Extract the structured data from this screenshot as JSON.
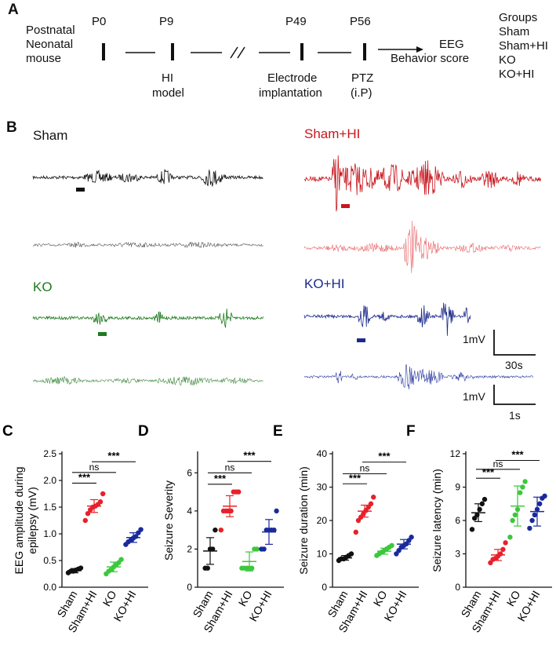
{
  "panel_a": {
    "letter": "A",
    "subject_lines": [
      "Postnatal",
      "Neonatal",
      "mouse"
    ],
    "stages": [
      {
        "day": "P0",
        "event": []
      },
      {
        "day": "P9",
        "event": [
          "HI",
          "model"
        ]
      },
      {
        "day": "P49",
        "event": [
          "Electrode",
          "implantation"
        ]
      },
      {
        "day": "P56",
        "event": [
          "PTZ",
          "(i.P)"
        ]
      }
    ],
    "outcome_lines": [
      "EEG",
      "Behavior score"
    ],
    "groups_title": "Groups",
    "groups": [
      "Sham",
      "Sham+HI",
      "KO",
      "KO+HI"
    ]
  },
  "panel_b": {
    "letter": "B",
    "traces": [
      {
        "label": "Sham",
        "color": "#111111"
      },
      {
        "label": "Sham+HI",
        "color": "#c8161d"
      },
      {
        "label": "KO",
        "color": "#1e7a1e"
      },
      {
        "label": "KO+HI",
        "color": "#1c2a8c"
      }
    ],
    "scalebar_long": {
      "amplitude": "1mV",
      "time": "30s"
    },
    "scalebar_short": {
      "amplitude": "1mV",
      "time": "1s"
    }
  },
  "colors": {
    "Sham": "#111111",
    "Sham+HI": "#e8202a",
    "KO": "#3cc83c",
    "KO+HI": "#1a2a9c"
  },
  "chart_data": [
    {
      "letter": "C",
      "type": "scatter",
      "ylabel_lines": [
        "EEG amplitude during",
        "epilepsy (mV)"
      ],
      "categories": [
        "Sham",
        "Sham+HI",
        "KO",
        "KO+HI"
      ],
      "ylim": [
        0,
        2.5
      ],
      "yticks": [
        0.0,
        0.5,
        1.0,
        1.5,
        2.0,
        2.5
      ],
      "ytick_labels": [
        "0.0",
        "0.5",
        "1.0",
        "1.5",
        "2.0",
        "2.5"
      ],
      "points": [
        [
          0.27,
          0.3,
          0.3,
          0.32,
          0.34,
          0.36
        ],
        [
          1.25,
          1.38,
          1.45,
          1.5,
          1.52,
          1.55,
          1.6,
          1.75
        ],
        [
          0.25,
          0.3,
          0.33,
          0.38,
          0.42,
          0.46,
          0.52
        ],
        [
          0.8,
          0.85,
          0.88,
          0.92,
          0.95,
          1.02,
          1.08
        ]
      ],
      "mean": [
        0.31,
        1.52,
        0.38,
        0.93
      ],
      "sd": [
        0.04,
        0.12,
        0.09,
        0.09
      ],
      "comparisons": [
        {
          "from": 0,
          "to": 1,
          "label": "***",
          "y": 1.95
        },
        {
          "from": 0,
          "to": 2,
          "label": "ns",
          "y": 2.15
        },
        {
          "from": 1,
          "to": 3,
          "label": "***",
          "y": 2.35
        }
      ]
    },
    {
      "letter": "D",
      "type": "scatter",
      "ylabel_lines": [
        "Seizure  Severity"
      ],
      "categories": [
        "Sham",
        "Sham+HI",
        "KO",
        "KO+HI"
      ],
      "ylim": [
        0,
        7
      ],
      "yticks": [
        0,
        2,
        4,
        6
      ],
      "ytick_labels": [
        "0",
        "2",
        "4",
        "6"
      ],
      "points": [
        [
          1,
          1,
          2,
          2,
          3
        ],
        [
          3,
          4,
          4,
          4,
          4,
          5,
          5,
          5
        ],
        [
          1,
          1,
          1,
          1,
          1,
          2,
          2
        ],
        [
          2,
          2,
          3,
          3,
          3,
          3,
          4
        ]
      ],
      "mean": [
        1.9,
        4.25,
        1.35,
        2.9
      ],
      "sd": [
        0.7,
        0.55,
        0.5,
        0.65
      ],
      "comparisons": [
        {
          "from": 0,
          "to": 1,
          "label": "***",
          "y": 5.4
        },
        {
          "from": 0,
          "to": 2,
          "label": "ns",
          "y": 6.0
        },
        {
          "from": 1,
          "to": 3,
          "label": "***",
          "y": 6.6
        }
      ]
    },
    {
      "letter": "E",
      "type": "scatter",
      "ylabel_lines": [
        "Seizure  duration (min)"
      ],
      "categories": [
        "Sham",
        "Sham+HI",
        "KO",
        "KO+HI"
      ],
      "ylim": [
        0,
        40
      ],
      "yticks": [
        0,
        10,
        20,
        30,
        40
      ],
      "ytick_labels": [
        "0",
        "10",
        "20",
        "30",
        "40"
      ],
      "points": [
        [
          8,
          8.5,
          8.5,
          9,
          9.5,
          10
        ],
        [
          16.5,
          20,
          21,
          22,
          23,
          24,
          25,
          27
        ],
        [
          9.5,
          10,
          10.5,
          11,
          11.5,
          12,
          12.5
        ],
        [
          10,
          11,
          12,
          12.5,
          13,
          14,
          15
        ]
      ],
      "mean": [
        8.8,
        22.8,
        10.8,
        12.9
      ],
      "sd": [
        0.7,
        1.8,
        0.9,
        1.4
      ],
      "comparisons": [
        {
          "from": 0,
          "to": 1,
          "label": "***",
          "y": 31
        },
        {
          "from": 0,
          "to": 2,
          "label": "ns",
          "y": 34
        },
        {
          "from": 1,
          "to": 3,
          "label": "***",
          "y": 37.5
        }
      ]
    },
    {
      "letter": "F",
      "type": "scatter",
      "ylabel_lines": [
        "Seizure  latency (min)"
      ],
      "categories": [
        "Sham",
        "Sham+HI",
        "KO",
        "KO+HI"
      ],
      "ylim": [
        0,
        12
      ],
      "yticks": [
        0,
        3,
        6,
        9,
        12
      ],
      "ytick_labels": [
        "0",
        "3",
        "6",
        "9",
        "12"
      ],
      "points": [
        [
          5.2,
          6.2,
          6.5,
          7.0,
          7.5,
          7.9
        ],
        [
          2.2,
          2.5,
          2.6,
          2.8,
          3.0,
          3.4,
          4.0
        ],
        [
          4.5,
          6.0,
          6.5,
          7.0,
          8.5,
          9.0,
          9.5
        ],
        [
          5.3,
          6.0,
          6.5,
          7.0,
          7.5,
          8.0,
          8.2
        ]
      ],
      "mean": [
        6.7,
        2.9,
        7.3,
        6.8
      ],
      "sd": [
        0.8,
        0.5,
        1.8,
        1.3
      ],
      "comparisons": [
        {
          "from": 0,
          "to": 1,
          "label": "***",
          "y": 9.8
        },
        {
          "from": 0,
          "to": 2,
          "label": "ns",
          "y": 10.6
        },
        {
          "from": 1,
          "to": 3,
          "label": "***",
          "y": 11.4
        }
      ]
    }
  ]
}
